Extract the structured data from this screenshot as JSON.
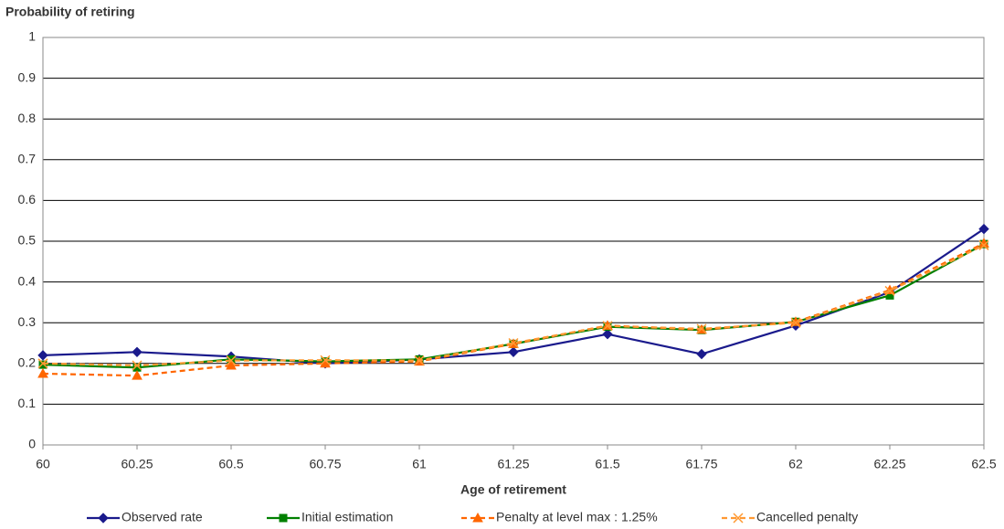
{
  "chart_data": {
    "type": "line",
    "y_axis_title": "Probability of retiring",
    "x_axis_title": "Age of retirement",
    "x": [
      60,
      60.25,
      60.5,
      60.75,
      61,
      61.25,
      61.5,
      61.75,
      62,
      62.25,
      62.5
    ],
    "xlim": [
      60,
      62.5
    ],
    "xticks": [
      60,
      60.25,
      60.5,
      60.75,
      61,
      61.25,
      61.5,
      61.75,
      62,
      62.25,
      62.5
    ],
    "ylim": [
      0,
      1
    ],
    "yticks": [
      0,
      0.1,
      0.2,
      0.3,
      0.4,
      0.5,
      0.6,
      0.7,
      0.8,
      0.9,
      1
    ],
    "grid": true,
    "legend": "bottom",
    "series": [
      {
        "name": "Observed rate",
        "color": "#1a1a8c",
        "marker": "diamond",
        "dash": false,
        "values": [
          0.22,
          0.228,
          0.217,
          0.2,
          0.21,
          0.228,
          0.272,
          0.223,
          0.293,
          0.375,
          0.53
        ]
      },
      {
        "name": "Initial estimation",
        "color": "#008000",
        "marker": "square",
        "dash": false,
        "values": [
          0.197,
          0.19,
          0.21,
          0.205,
          0.21,
          0.248,
          0.29,
          0.282,
          0.302,
          0.367,
          0.493
        ]
      },
      {
        "name": "Penalty at level max : 1.25%",
        "color": "#ff6600",
        "marker": "triangle",
        "dash": true,
        "values": [
          0.175,
          0.17,
          0.195,
          0.2,
          0.205,
          0.248,
          0.293,
          0.283,
          0.302,
          0.38,
          0.495
        ]
      },
      {
        "name": "Cancelled penalty",
        "color": "#ff9933",
        "marker": "cross",
        "dash": true,
        "values": [
          0.2,
          0.195,
          0.207,
          0.208,
          0.207,
          0.25,
          0.292,
          0.285,
          0.3,
          0.378,
          0.49
        ]
      }
    ]
  }
}
